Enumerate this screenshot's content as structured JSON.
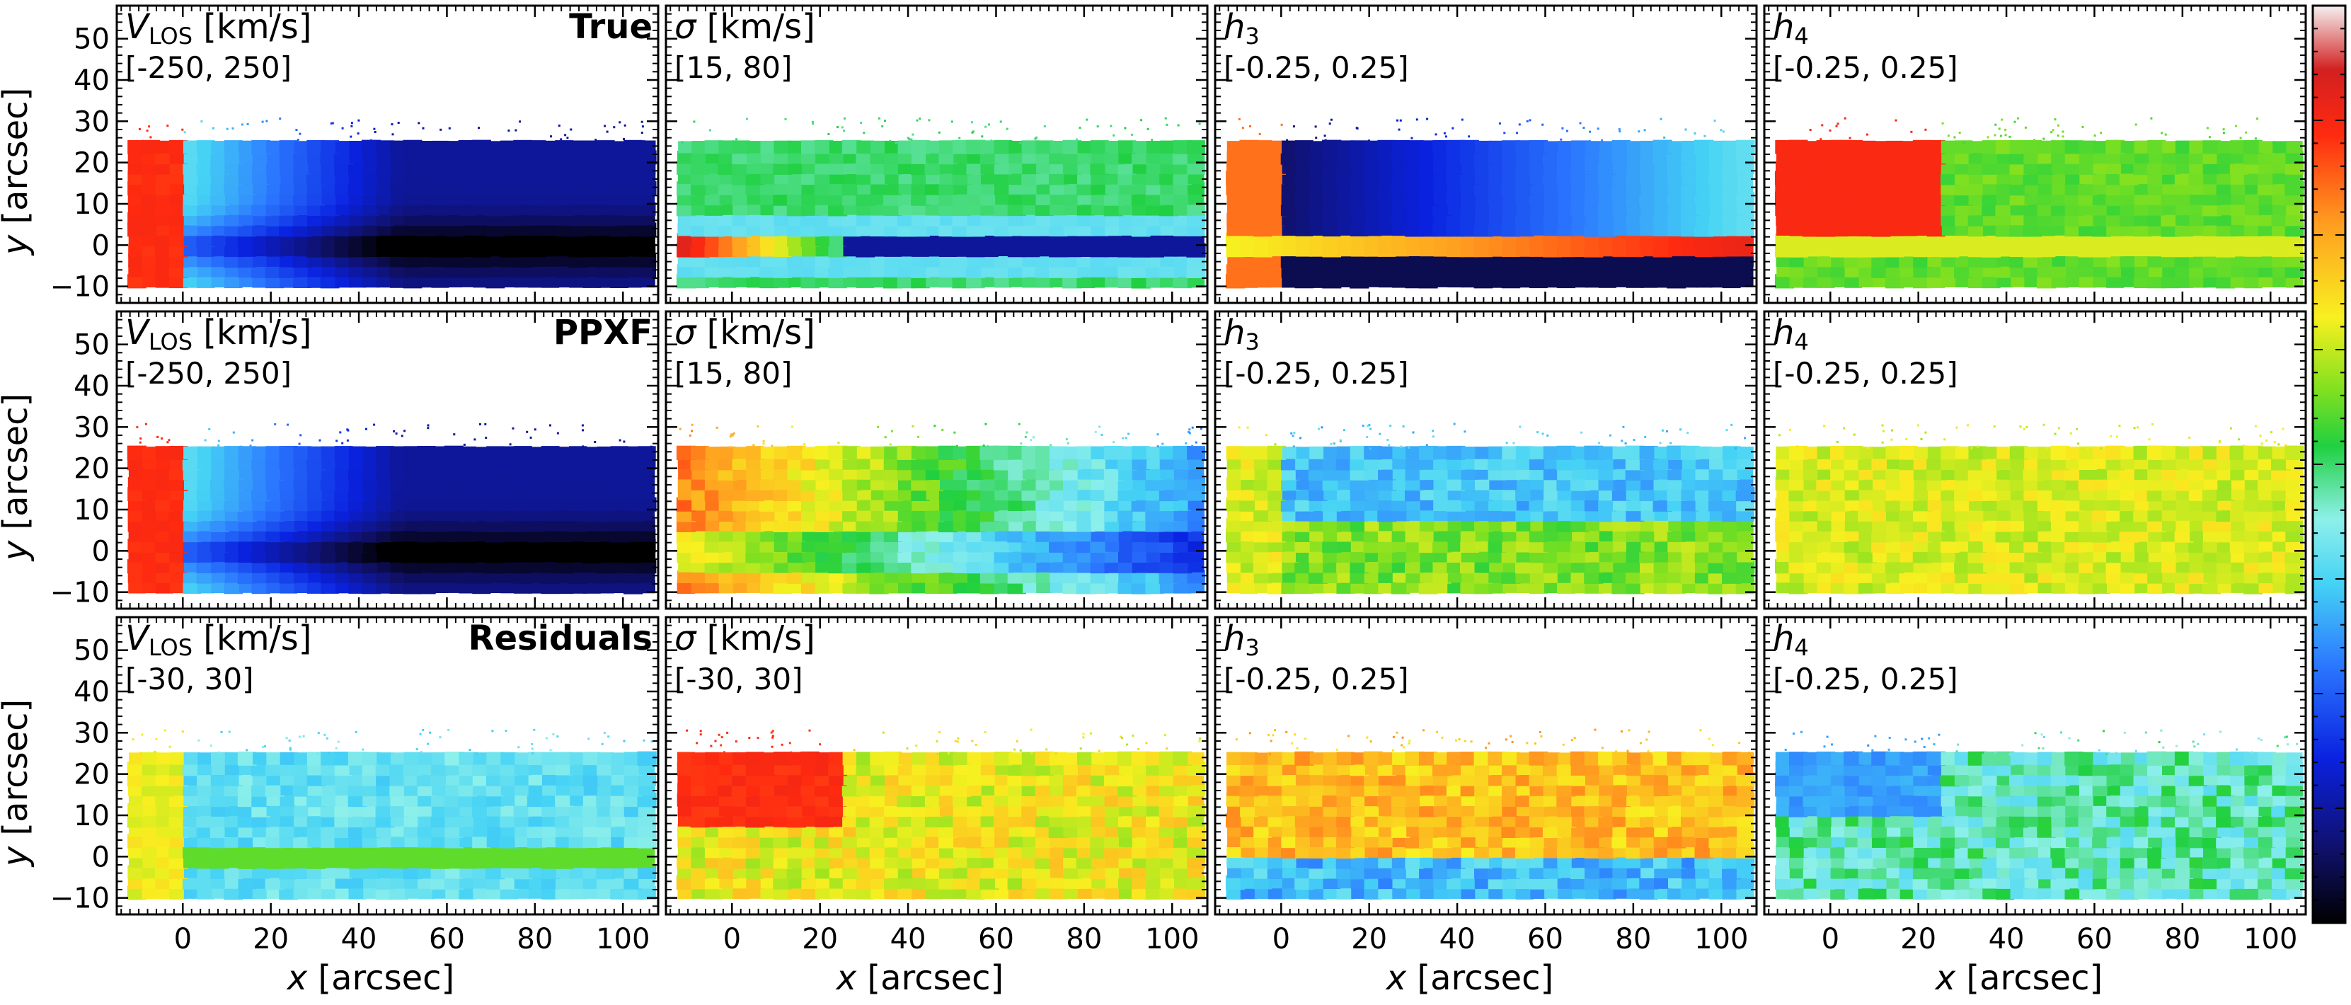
{
  "chart_data": {
    "type": "heatmap",
    "xlabel": "x [arcsec]",
    "ylabel": "y [arcsec]",
    "xlim": [
      -15,
      108
    ],
    "ylim": [
      -14,
      58
    ],
    "xticks": [
      0,
      20,
      40,
      60,
      80,
      100
    ],
    "yticks": [
      -10,
      0,
      10,
      20,
      30,
      40,
      50
    ],
    "data_extent": {
      "x": [
        -12,
        107
      ],
      "y": [
        -10,
        25
      ]
    },
    "colormap": "spectral-like (black-blue-cyan-green-yellow-red-pink)",
    "rows": [
      {
        "label": "True",
        "panels": [
          {
            "quantity": "V_LOS",
            "unit": "km/s",
            "range_label": "[-250, 250]",
            "vmin": -250,
            "vmax": 250
          },
          {
            "quantity": "sigma",
            "unit": "km/s",
            "range_label": "[15, 80]",
            "vmin": 15,
            "vmax": 80
          },
          {
            "quantity": "h3",
            "unit": "",
            "range_label": "[-0.25, 0.25]",
            "vmin": -0.25,
            "vmax": 0.25
          },
          {
            "quantity": "h4",
            "unit": "",
            "range_label": "[-0.25, 0.25]",
            "vmin": -0.25,
            "vmax": 0.25
          }
        ]
      },
      {
        "label": "PPXF",
        "panels": [
          {
            "quantity": "V_LOS",
            "unit": "km/s",
            "range_label": "[-250, 250]",
            "vmin": -250,
            "vmax": 250
          },
          {
            "quantity": "sigma",
            "unit": "km/s",
            "range_label": "[15, 80]",
            "vmin": 15,
            "vmax": 80
          },
          {
            "quantity": "h3",
            "unit": "",
            "range_label": "[-0.25, 0.25]",
            "vmin": -0.25,
            "vmax": 0.25
          },
          {
            "quantity": "h4",
            "unit": "",
            "range_label": "[-0.25, 0.25]",
            "vmin": -0.25,
            "vmax": 0.25
          }
        ]
      },
      {
        "label": "Residuals",
        "panels": [
          {
            "quantity": "V_LOS",
            "unit": "km/s",
            "range_label": "[-30, 30]",
            "vmin": -30,
            "vmax": 30
          },
          {
            "quantity": "sigma",
            "unit": "km/s",
            "range_label": "[-30, 30]",
            "vmin": -30,
            "vmax": 30
          },
          {
            "quantity": "h3",
            "unit": "",
            "range_label": "[-0.25, 0.25]",
            "vmin": -0.25,
            "vmax": 0.25
          },
          {
            "quantity": "h4",
            "unit": "",
            "range_label": "[-0.25, 0.25]",
            "vmin": -0.25,
            "vmax": 0.25
          }
        ]
      }
    ]
  },
  "labels": {
    "v_main": "V",
    "v_sub": "LOS",
    "sigma": "σ",
    "h_main": "h",
    "h3_sub": "3",
    "h4_sub": "4",
    "unit_kms": " [km/s]",
    "x_var": "x",
    "x_unit": " [arcsec]",
    "y_var": "y",
    "y_unit": " [arcsec]"
  }
}
